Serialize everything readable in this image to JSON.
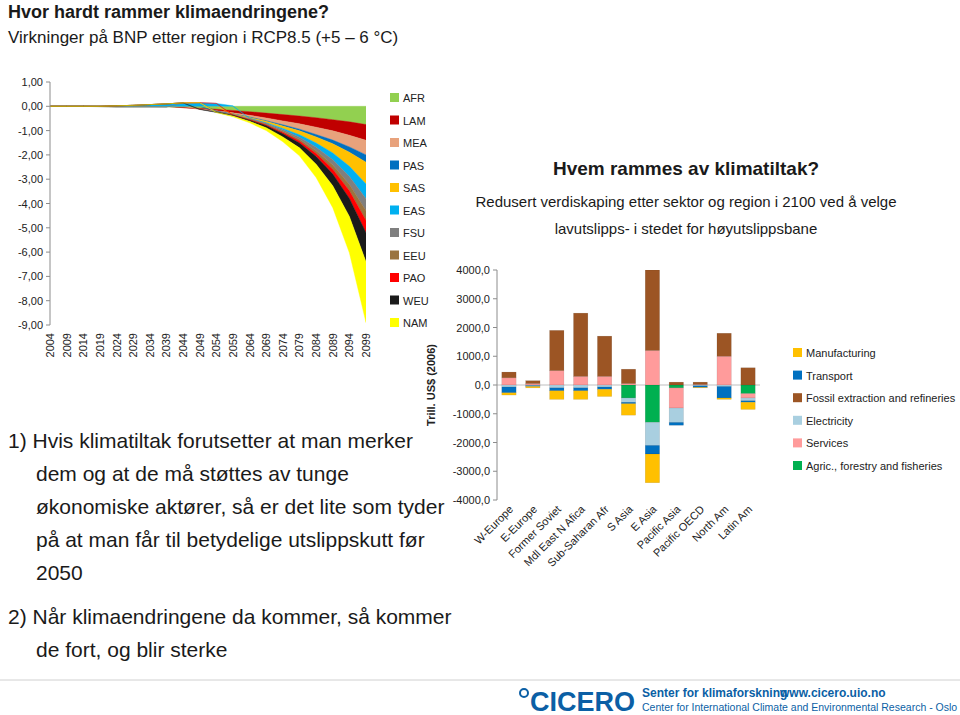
{
  "chart_data": [
    {
      "type": "area",
      "stacked": true,
      "title": "Hvor hardt rammer klimaendringene?",
      "subtitle": "Virkninger på BNP etter region i RCP8.5 (+5 – 6 °C)",
      "categories": [
        "2004",
        "2009",
        "2014",
        "2019",
        "2024",
        "2029",
        "2034",
        "2039",
        "2044",
        "2049",
        "2054",
        "2059",
        "2064",
        "2069",
        "2074",
        "2079",
        "2084",
        "2089",
        "2094",
        "2099"
      ],
      "ylim": [
        -9,
        1
      ],
      "yticks": [
        {
          "value": 1,
          "label": "1,00"
        },
        {
          "value": 0,
          "label": "0,00"
        },
        {
          "value": -1,
          "label": "-1,00"
        },
        {
          "value": -2,
          "label": "-2,00"
        },
        {
          "value": -3,
          "label": "-3,00"
        },
        {
          "value": -4,
          "label": "-4,00"
        },
        {
          "value": -5,
          "label": "-5,00"
        },
        {
          "value": -6,
          "label": "-6,00"
        },
        {
          "value": -7,
          "label": "-7,00"
        },
        {
          "value": -8,
          "label": "-8,00"
        },
        {
          "value": -9,
          "label": "-9,00"
        }
      ],
      "legend": "right",
      "series": [
        {
          "name": "AFR",
          "color": "#92d050",
          "values": [
            0,
            0,
            0,
            -0.01,
            -0.02,
            -0.02,
            -0.02,
            -0.03,
            -0.05,
            -0.08,
            -0.12,
            -0.17,
            -0.22,
            -0.28,
            -0.34,
            -0.4,
            -0.47,
            -0.55,
            -0.64,
            -0.75
          ]
        },
        {
          "name": "LAM",
          "color": "#c00000",
          "values": [
            0,
            0,
            0,
            0,
            0,
            0,
            0,
            0,
            -0.01,
            -0.03,
            -0.06,
            -0.1,
            -0.15,
            -0.2,
            -0.26,
            -0.32,
            -0.39,
            -0.46,
            -0.55,
            -0.65
          ]
        },
        {
          "name": "MEA",
          "color": "#e8a27c",
          "values": [
            0,
            0,
            0,
            0,
            0,
            0,
            0,
            0,
            0,
            -0.01,
            -0.02,
            -0.04,
            -0.07,
            -0.11,
            -0.16,
            -0.22,
            -0.3,
            -0.38,
            -0.48,
            -0.6
          ]
        },
        {
          "name": "PAS",
          "color": "#0070c0",
          "values": [
            0,
            0,
            0,
            0,
            0,
            0,
            0,
            0,
            0,
            0,
            -0.01,
            -0.01,
            -0.02,
            -0.03,
            -0.05,
            -0.07,
            -0.1,
            -0.15,
            -0.22,
            -0.3
          ]
        },
        {
          "name": "SAS",
          "color": "#ffc000",
          "values": [
            0,
            0,
            0,
            0,
            0,
            0,
            0,
            0,
            0,
            0,
            0,
            -0.01,
            -0.03,
            -0.06,
            -0.1,
            -0.16,
            -0.25,
            -0.38,
            -0.58,
            -0.9
          ]
        },
        {
          "name": "EAS",
          "color": "#00b0f0",
          "values": [
            0,
            0,
            0,
            0,
            0.02,
            0.04,
            0.07,
            0.1,
            0.14,
            0.15,
            0.12,
            0.02,
            -0.01,
            -0.02,
            -0.06,
            -0.1,
            -0.18,
            -0.28,
            -0.42,
            -0.6
          ]
        },
        {
          "name": "FSU",
          "color": "#7f7f7f",
          "values": [
            0,
            0,
            0,
            -0.01,
            -0.02,
            -0.02,
            -0.02,
            -0.01,
            0,
            0,
            -0.01,
            -0.02,
            -0.03,
            -0.04,
            -0.06,
            -0.09,
            -0.14,
            -0.22,
            -0.33,
            -0.5
          ]
        },
        {
          "name": "EEU",
          "color": "#9a7440",
          "values": [
            0,
            0,
            0,
            0,
            0,
            0,
            0,
            0,
            0,
            0,
            -0.01,
            -0.01,
            -0.02,
            -0.03,
            -0.05,
            -0.07,
            -0.11,
            -0.17,
            -0.26,
            -0.4
          ]
        },
        {
          "name": "PAO",
          "color": "#ff0000",
          "values": [
            0,
            0,
            0,
            0,
            0,
            0,
            0,
            0,
            0,
            0,
            0,
            -0.01,
            -0.02,
            -0.03,
            -0.05,
            -0.08,
            -0.13,
            -0.2,
            -0.31,
            -0.5
          ]
        },
        {
          "name": "WEU",
          "color": "#1a1a1a",
          "values": [
            0,
            0,
            0,
            0,
            0,
            0,
            0,
            0,
            0,
            -0.01,
            -0.02,
            -0.03,
            -0.05,
            -0.08,
            -0.13,
            -0.2,
            -0.31,
            -0.48,
            -0.74,
            -1.2
          ]
        },
        {
          "name": "NAM",
          "color": "#ffff00",
          "values": [
            0,
            0,
            0,
            0,
            0,
            0,
            0,
            0,
            0,
            0,
            -0.01,
            -0.03,
            -0.06,
            -0.12,
            -0.2,
            -0.33,
            -0.55,
            -0.9,
            -1.5,
            -2.5
          ]
        }
      ]
    },
    {
      "type": "bar",
      "stacked": true,
      "title": "Hvem rammes av klimatiltak?",
      "subtitle": "Redusert verdiskaping etter sektor og region i 2100 ved å velge lavutslipps- i stedet for høyutslippsbane",
      "y_label": "Trill. US$ (2006)",
      "categories": [
        "W-Europe",
        "E-Europe",
        "Former Soviet",
        "Mdl East N Afica",
        "Sub-Saharan Afr",
        "S Asia",
        "E Asia",
        "Pacific Asia",
        "Pacific OECD",
        "North Am",
        "Latin Am"
      ],
      "ylim": [
        -4000,
        4000
      ],
      "yticks": [
        {
          "value": 4000,
          "label": "4000,0"
        },
        {
          "value": 3000,
          "label": "3000,0"
        },
        {
          "value": 2000,
          "label": "2000,0"
        },
        {
          "value": 1000,
          "label": "1000,0"
        },
        {
          "value": 0,
          "label": "0,0"
        },
        {
          "value": -1000,
          "label": "-1000,0"
        },
        {
          "value": -2000,
          "label": "-2000,0"
        },
        {
          "value": -3000,
          "label": "-3000,0"
        },
        {
          "value": -4000,
          "label": "-4000,0"
        }
      ],
      "legend": "right",
      "series": [
        {
          "name": "Manufacturing",
          "color": "#ffc000",
          "values": [
            -80,
            -50,
            -300,
            -300,
            -250,
            -400,
            -1000,
            0,
            -20,
            -50,
            -250
          ]
        },
        {
          "name": "Transport",
          "color": "#0070c0",
          "values": [
            -200,
            -30,
            -100,
            -100,
            -80,
            -50,
            -300,
            -100,
            -50,
            -400,
            -50
          ]
        },
        {
          "name": "Fossil extraction and refineries",
          "color": "#9c5524",
          "values": [
            200,
            100,
            1400,
            2200,
            1400,
            500,
            2800,
            100,
            80,
            800,
            600
          ]
        },
        {
          "name": "Electricity",
          "color": "#a9cfe0",
          "values": [
            -70,
            -20,
            -100,
            -100,
            -70,
            -150,
            -800,
            -500,
            -30,
            -50,
            -100
          ]
        },
        {
          "name": "Services",
          "color": "#ff9b9b",
          "values": [
            250,
            50,
            500,
            300,
            300,
            50,
            1200,
            -700,
            20,
            1000,
            -150
          ]
        },
        {
          "name": "Agric., forestry and fisheries",
          "color": "#00b050",
          "values": [
            0,
            0,
            0,
            0,
            0,
            -450,
            -1300,
            -100,
            0,
            0,
            -300
          ]
        }
      ]
    }
  ],
  "notes": [
    "1) Hvis klimatiltak forutsetter at man merker dem og at de må støttes av tunge økonomiske aktører, så er det lite som tyder på at man får til betydelige utslippskutt før 2050",
    "2) Når klimaendringene da kommer, så kommer de fort, og blir sterke"
  ],
  "footer": {
    "logo": "CICERO",
    "name": "Senter for klimaforskning",
    "english_name": "Center for International Climate and Environmental Research - Oslo",
    "url": "www.cicero.uio.no"
  }
}
